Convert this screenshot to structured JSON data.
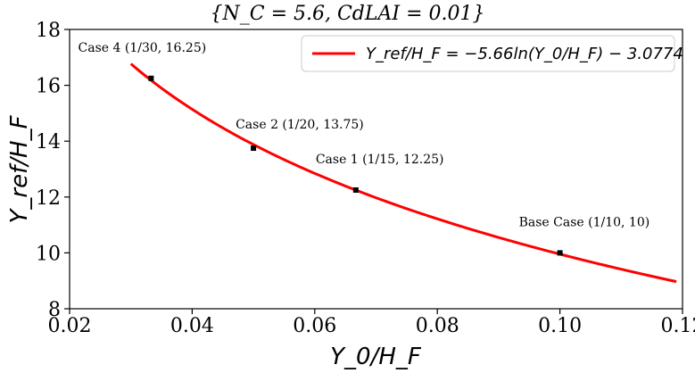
{
  "chart_data": {
    "type": "scatter",
    "title": "{N_C = 5.6, CdLAI = 0.01}",
    "xlabel": "Y_0/H_F",
    "ylabel": "Y_ref/H_F",
    "xlim": [
      0.02,
      0.12
    ],
    "ylim": [
      8,
      18
    ],
    "xticks": [
      "0.02",
      "0.04",
      "0.06",
      "0.08",
      "0.10",
      "0.12"
    ],
    "yticks": [
      "8",
      "10",
      "12",
      "14",
      "16",
      "18"
    ],
    "grid": false,
    "legend_position": "top-right",
    "points": [
      {
        "x": 0.0333,
        "y": 16.25,
        "label": "Case 4 (1/30, 16.25)"
      },
      {
        "x": 0.05,
        "y": 13.75,
        "label": "Case 2 (1/20, 13.75)"
      },
      {
        "x": 0.0667,
        "y": 12.25,
        "label": "Case 1 (1/15, 12.25)"
      },
      {
        "x": 0.1,
        "y": 10,
        "label": "Base Case (1/10, 10)"
      }
    ],
    "fit": {
      "name": "Y_ref/H_F = −5.66ln(Y_0/H_F) − 3.0774",
      "a": -5.66,
      "b": -3.0774,
      "x_range": [
        0.03,
        0.119
      ],
      "color": "#ff0000"
    },
    "marker_color": "#000000"
  }
}
